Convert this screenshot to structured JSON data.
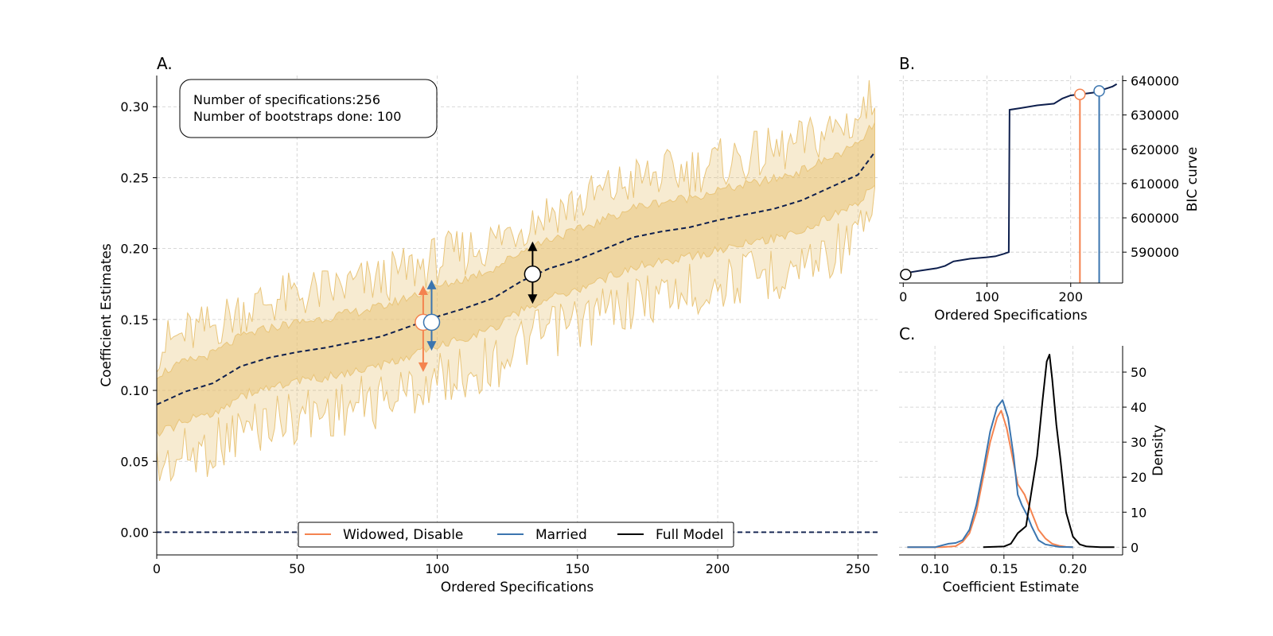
{
  "chart_data": [
    {
      "type": "line",
      "panel": "A.",
      "xlabel": "Ordered Specifications",
      "ylabel": "Coefficient Estimates",
      "xlim": [
        0,
        257
      ],
      "ylim": [
        -0.016,
        0.322
      ],
      "xticks": [
        0,
        50,
        100,
        150,
        200,
        250
      ],
      "yticks": [
        "0.00",
        "0.05",
        "0.10",
        "0.15",
        "0.20",
        "0.25",
        "0.30"
      ],
      "grid": true,
      "annotation": [
        "Number of specifications:256",
        "Number of bootstraps done: 100"
      ],
      "legend": {
        "placement": "lower-center",
        "entries": [
          {
            "label": "Widowed, Disable",
            "color": "#f4834f"
          },
          {
            "label": "Married",
            "color": "#3b75af"
          },
          {
            "label": "Full Model",
            "color": "#000000"
          }
        ]
      },
      "median_curve": {
        "color": "#0e1f4d",
        "x": [
          0,
          10,
          20,
          30,
          40,
          50,
          60,
          70,
          80,
          90,
          100,
          110,
          120,
          130,
          140,
          150,
          160,
          170,
          180,
          190,
          200,
          210,
          220,
          230,
          240,
          250,
          256
        ],
        "y": [
          0.09,
          0.099,
          0.105,
          0.117,
          0.123,
          0.127,
          0.13,
          0.134,
          0.138,
          0.145,
          0.152,
          0.158,
          0.165,
          0.177,
          0.186,
          0.192,
          0.2,
          0.208,
          0.212,
          0.215,
          0.22,
          0.224,
          0.228,
          0.234,
          0.243,
          0.252,
          0.268
        ]
      },
      "inner_band": {
        "color": "#e9c57a",
        "lower_offset": -0.022,
        "upper_offset": 0.022
      },
      "outer_band": {
        "color": "#e9c57a",
        "lower_offset": -0.045,
        "upper_offset": 0.04
      },
      "zero_line": 0,
      "highlighted": [
        {
          "name": "Widowed, Disable",
          "x": 95,
          "y": 0.148,
          "lower": 0.113,
          "upper": 0.174,
          "color": "#f4834f"
        },
        {
          "name": "Married",
          "x": 98,
          "y": 0.148,
          "lower": 0.128,
          "upper": 0.178,
          "color": "#3b75af"
        },
        {
          "name": "Full Model",
          "x": 134,
          "y": 0.182,
          "lower": 0.161,
          "upper": 0.205,
          "color": "#000000"
        }
      ]
    },
    {
      "type": "line",
      "panel": "B.",
      "xlabel": "Ordered Specifications",
      "ylabel": "BIC curve",
      "xlim": [
        -5,
        262
      ],
      "ylim": [
        581000,
        641500
      ],
      "xticks": [
        0,
        100,
        200
      ],
      "yticks": [
        590000,
        600000,
        610000,
        620000,
        630000,
        640000
      ],
      "grid": true,
      "series": {
        "color": "#0e1f4d",
        "x": [
          0,
          10,
          20,
          40,
          50,
          60,
          70,
          80,
          100,
          110,
          120,
          126,
          127,
          140,
          160,
          180,
          190,
          200,
          210,
          230,
          240,
          250,
          255
        ],
        "y": [
          583500,
          584200,
          584600,
          585300,
          586000,
          587300,
          587700,
          588100,
          588500,
          588800,
          589500,
          590000,
          631500,
          632000,
          632800,
          633300,
          634800,
          635700,
          636000,
          636600,
          637500,
          638300,
          639000
        ]
      },
      "markers": [
        {
          "name": "Full Model",
          "x": 3,
          "y": 583500,
          "color": "#000000"
        },
        {
          "name": "Widowed, Disable",
          "x": 211,
          "y": 636000,
          "color": "#f4834f"
        },
        {
          "name": "Married",
          "x": 234,
          "y": 637000,
          "color": "#3b75af"
        }
      ]
    },
    {
      "type": "line",
      "panel": "C.",
      "xlabel": "Coefficient Estimate",
      "ylabel": "Density",
      "xlim": [
        0.074,
        0.236
      ],
      "ylim": [
        -2.2,
        57.5
      ],
      "xticks": [
        "0.10",
        "0.15",
        "0.20"
      ],
      "yticks": [
        0,
        10,
        20,
        30,
        40,
        50
      ],
      "grid": true,
      "series": [
        {
          "name": "Widowed, Disable",
          "color": "#f4834f",
          "x": [
            0.08,
            0.105,
            0.115,
            0.12,
            0.125,
            0.13,
            0.135,
            0.14,
            0.145,
            0.148,
            0.152,
            0.157,
            0.16,
            0.165,
            0.17,
            0.175,
            0.18,
            0.185,
            0.19,
            0.195,
            0.2
          ],
          "y": [
            0,
            0,
            0.3,
            1.5,
            4,
            10,
            20,
            30,
            37,
            39,
            34,
            24,
            18,
            15,
            10,
            5,
            2.5,
            1,
            0.4,
            0.1,
            0
          ]
        },
        {
          "name": "Married",
          "color": "#3b75af",
          "x": [
            0.08,
            0.1,
            0.11,
            0.115,
            0.12,
            0.125,
            0.13,
            0.135,
            0.14,
            0.145,
            0.149,
            0.153,
            0.157,
            0.16,
            0.163,
            0.167,
            0.17,
            0.175,
            0.18,
            0.19,
            0.2
          ],
          "y": [
            0,
            0,
            1,
            1.2,
            2,
            5,
            12,
            22,
            33,
            40,
            42,
            37,
            26,
            15,
            12,
            9,
            6,
            2,
            0.8,
            0.1,
            0
          ]
        },
        {
          "name": "Full Model",
          "color": "#000000",
          "x": [
            0.135,
            0.15,
            0.155,
            0.16,
            0.163,
            0.166,
            0.17,
            0.174,
            0.178,
            0.181,
            0.183,
            0.185,
            0.188,
            0.191,
            0.195,
            0.2,
            0.205,
            0.21,
            0.22,
            0.23
          ],
          "y": [
            0,
            0.2,
            1,
            4,
            5,
            6,
            16,
            26,
            42,
            53,
            55,
            48,
            35,
            25,
            10,
            3,
            0.8,
            0.2,
            0,
            0
          ]
        }
      ]
    }
  ]
}
